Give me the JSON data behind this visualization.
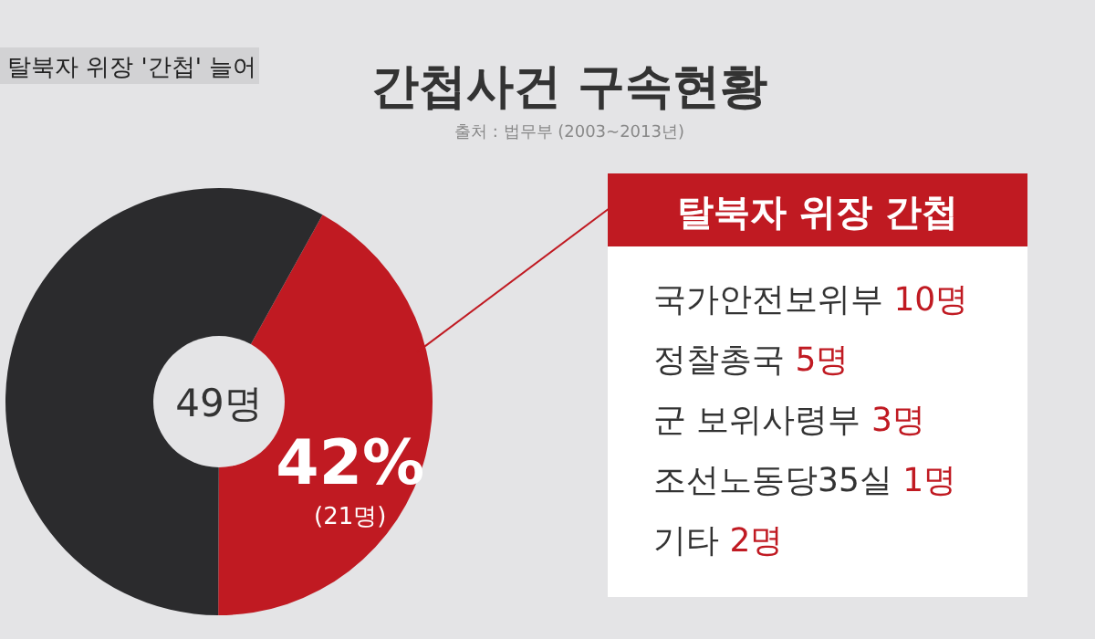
{
  "chart_data": {
    "type": "donut",
    "title": "간첩사건 구속현황",
    "subtitle": "출처 : 법무부 (2003~2013년)",
    "categories": [
      null,
      null
    ],
    "values": [
      42,
      58
    ],
    "colors": [
      "#c01a22",
      "#2b2b2d"
    ],
    "value_labels": [
      "42%",
      null
    ],
    "annotations": [
      "탈북자 위장 '간첩' 늘어",
      "49명",
      "(21명)",
      "탈북자 위장 간첩",
      "국가안전보위부 10명",
      "정찰총국 5명",
      "군 보위사령부 3명",
      "조선노동당35실 1명",
      "기타 2명"
    ]
  }
}
